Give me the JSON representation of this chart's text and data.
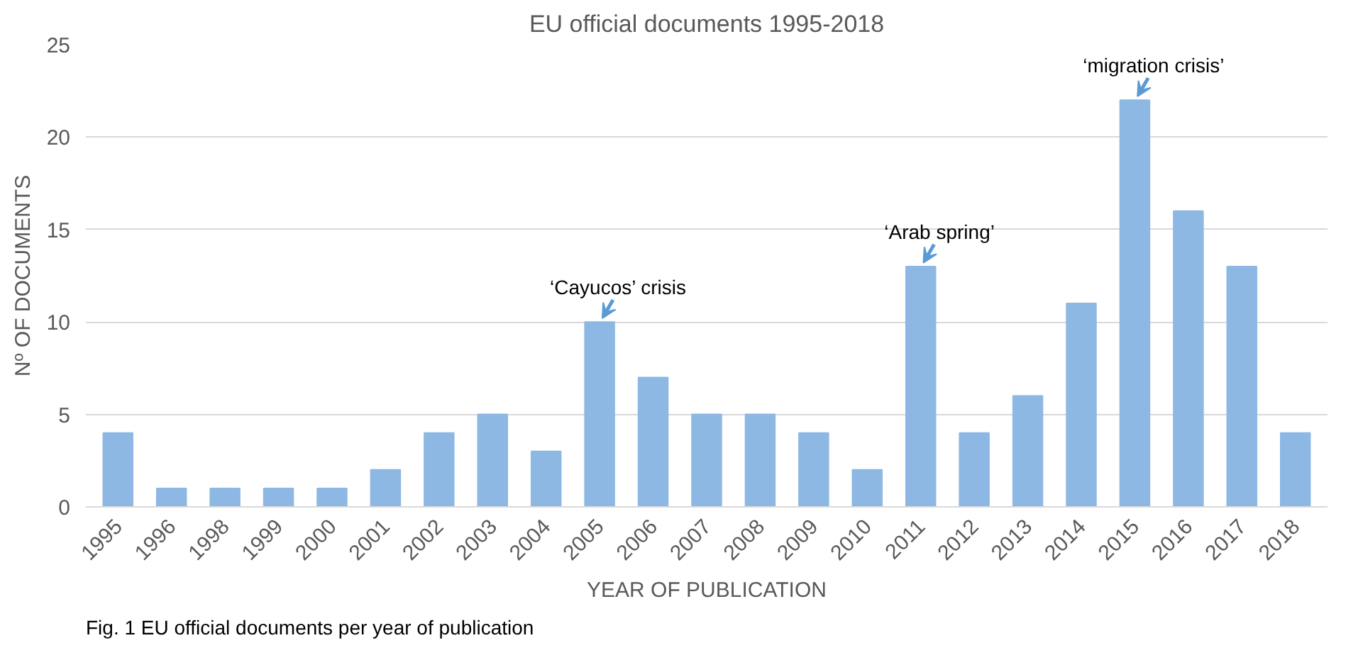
{
  "chart_data": {
    "type": "bar",
    "title": "EU official documents 1995-2018",
    "xlabel": "YEAR OF PUBLICATION",
    "ylabel": "Nº OF DOCUMENTS",
    "categories": [
      "1995",
      "1996",
      "1998",
      "1999",
      "2000",
      "2001",
      "2002",
      "2003",
      "2004",
      "2005",
      "2006",
      "2007",
      "2008",
      "2009",
      "2010",
      "2011",
      "2012",
      "2013",
      "2014",
      "2015",
      "2016",
      "2017",
      "2018"
    ],
    "values": [
      4,
      1,
      1,
      1,
      1,
      2,
      4,
      5,
      3,
      10,
      7,
      5,
      5,
      4,
      2,
      13,
      4,
      6,
      11,
      22,
      16,
      13,
      4
    ],
    "color": "#8db8e3",
    "ylim": [
      0,
      25
    ],
    "yticks": [
      0,
      5,
      10,
      15,
      20,
      25
    ],
    "grid": "y",
    "annotations": [
      {
        "text": "‘Cayucos’ crisis",
        "x": "2005",
        "y": 10
      },
      {
        "text": "‘Arab spring’",
        "x": "2011",
        "y": 13
      },
      {
        "text": "‘migration crisis’",
        "x": "2015",
        "y": 22
      },
      "Fig. 1 EU official documents per year of publication"
    ]
  }
}
